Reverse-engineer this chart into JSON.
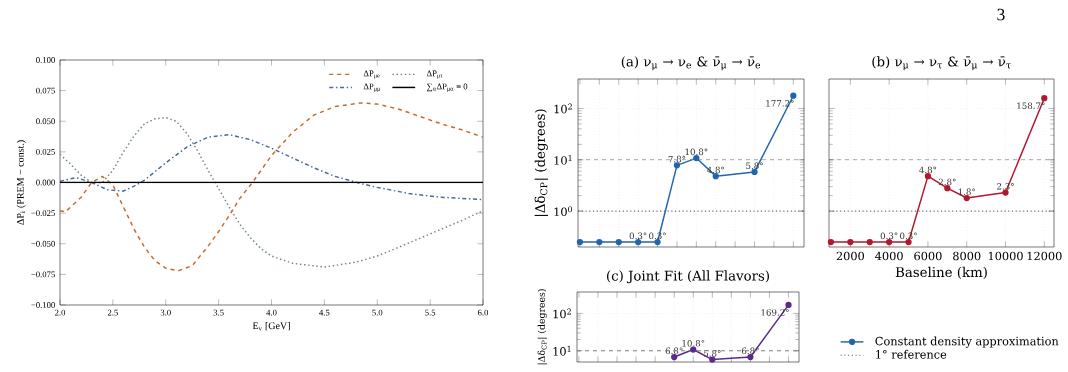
{
  "chart_data": [
    {
      "type": "line",
      "xlabel": "E$_{ν}$ [GeV]",
      "ylabel": "ΔP$_{i}$ (PREM − const.)",
      "annotations": [
        "3"
      ],
      "xlim": [
        2.0,
        6.0
      ],
      "ylim": [
        -0.1,
        0.1
      ],
      "xticks": [
        {
          "value": 2.0,
          "label": "2.0"
        },
        {
          "value": 2.5,
          "label": "2.5"
        },
        {
          "value": 3.0,
          "label": "3.0"
        },
        {
          "value": 3.5,
          "label": "3.5"
        },
        {
          "value": 4.0,
          "label": "4.0"
        },
        {
          "value": 4.5,
          "label": "4.5"
        },
        {
          "value": 5.0,
          "label": "5.0"
        },
        {
          "value": 5.5,
          "label": "5.5"
        },
        {
          "value": 6.0,
          "label": "6.0"
        }
      ],
      "yticks": [
        {
          "value": -0.1,
          "label": "−0.100"
        },
        {
          "value": -0.075,
          "label": "−0.075"
        },
        {
          "value": -0.05,
          "label": "−0.050"
        },
        {
          "value": -0.025,
          "label": "−0.025"
        },
        {
          "value": 0,
          "label": "0.000"
        },
        {
          "value": 0.025,
          "label": "0.025"
        },
        {
          "value": 0.05,
          "label": "0.050"
        },
        {
          "value": 0.075,
          "label": "0.075"
        },
        {
          "value": 0.1,
          "label": "0.100"
        }
      ],
      "legend": "top right",
      "series": [
        {
          "name": "ΔP$_{μe}$",
          "color": "#c8682a",
          "line_style": "dashed",
          "x": [
            2.0,
            2.05,
            2.2,
            2.3,
            2.4,
            2.5,
            2.6,
            2.7,
            2.8,
            2.9,
            3.0,
            3.12,
            3.25,
            3.4,
            3.5,
            3.6,
            3.7,
            3.82,
            4.0,
            4.2,
            4.4,
            4.6,
            4.85,
            5.0,
            5.2,
            5.4,
            5.6,
            5.8,
            6.0
          ],
          "values": [
            -0.023,
            -0.024,
            -0.012,
            0.0,
            0.005,
            -0.002,
            -0.02,
            -0.038,
            -0.053,
            -0.064,
            -0.07,
            -0.072,
            -0.068,
            -0.052,
            -0.04,
            -0.027,
            -0.013,
            0.0,
            0.022,
            0.041,
            0.055,
            0.062,
            0.065,
            0.064,
            0.06,
            0.054,
            0.048,
            0.043,
            0.037
          ]
        },
        {
          "name": "ΔP$_{μμ}$",
          "color": "#4a6a9a",
          "line_style": "dashdot",
          "x": [
            2.0,
            2.15,
            2.3,
            2.45,
            2.6,
            2.7,
            2.8,
            2.9,
            3.0,
            3.2,
            3.4,
            3.6,
            3.8,
            4.0,
            4.2,
            4.4,
            4.6,
            4.85,
            5.0,
            5.3,
            5.6,
            6.0
          ],
          "values": [
            0.001,
            0.004,
            0.0,
            -0.006,
            -0.007,
            -0.003,
            0.002,
            0.009,
            0.016,
            0.029,
            0.037,
            0.039,
            0.035,
            0.028,
            0.02,
            0.012,
            0.005,
            -0.001,
            -0.004,
            -0.009,
            -0.012,
            -0.014
          ]
        },
        {
          "name": "ΔP$_{μτ}$",
          "color": "#6a8a7a",
          "line_style": "dotted",
          "x": [
            2.0,
            2.1,
            2.2,
            2.3,
            2.4,
            2.5,
            2.6,
            2.7,
            2.8,
            2.9,
            3.0,
            3.1,
            3.2,
            3.3,
            3.4,
            3.5,
            3.6,
            3.7,
            3.8,
            3.9,
            4.0,
            4.2,
            4.5,
            4.8,
            5.0,
            5.2,
            5.5,
            5.8,
            6.0
          ],
          "values": [
            0.023,
            0.015,
            0.006,
            0.0,
            0.0,
            0.01,
            0.025,
            0.038,
            0.048,
            0.052,
            0.053,
            0.05,
            0.04,
            0.026,
            0.01,
            -0.005,
            -0.02,
            -0.034,
            -0.045,
            -0.054,
            -0.06,
            -0.066,
            -0.069,
            -0.065,
            -0.06,
            -0.053,
            -0.042,
            -0.031,
            -0.023
          ]
        },
        {
          "name": "∑$_{α}$ΔP$_{μα}$ ≡ 0",
          "color": "#000000",
          "line_style": "solid",
          "x": [
            2.0,
            6.0
          ],
          "values": [
            0,
            0
          ]
        }
      ]
    },
    {
      "type": "line",
      "title": "(a) ν$_{μ}$ → ν$_{e}$ & ν̄$_{μ}$ → ν̄$_{e}$",
      "ylabel": "|Δδ$_{CP}$| (degrees)",
      "categories": [
        null,
        null,
        null,
        null,
        null,
        null,
        null,
        null,
        null,
        null,
        null,
        null
      ],
      "ylim": [
        0.2,
        375
      ],
      "log": "y",
      "yticks": [
        {
          "value": 1,
          "label": "10$^{0}$"
        },
        {
          "value": 10,
          "label": "10$^{1}$"
        },
        {
          "value": 100,
          "label": "10$^{2}$"
        }
      ],
      "tick_labels": "y",
      "grid": true,
      "marker": "circle",
      "legend": "bottom right",
      "ref_lines": [
        {
          "axis": "y",
          "value": 10,
          "color": "#808080",
          "line_style": "dashed"
        },
        {
          "axis": "y",
          "value": 1,
          "color": "#606060",
          "line_style": "dotted",
          "label": "1° reference"
        }
      ],
      "series": [
        {
          "name": "Constant density approximation",
          "color": "#2166ac",
          "values": [
            0.25,
            0.25,
            0.25,
            0.25,
            0.25,
            7.8,
            10.8,
            4.8,
            null,
            5.8,
            null,
            177.2
          ],
          "value_labels": [
            null,
            null,
            null,
            "0.3°",
            "0.3°",
            "7.8°",
            "10.8°",
            "4.8°",
            null,
            "5.8°",
            null,
            "177.2°"
          ]
        }
      ]
    },
    {
      "type": "line",
      "title": "(b) ν$_{μ}$ → ν$_{τ}$ & ν̄$_{μ}$ → ν̄$_{τ}$",
      "xlabel": "Baseline (km)",
      "x": [
        1000,
        2000,
        3000,
        4000,
        5000,
        6000,
        7000,
        8000,
        10000,
        12000
      ],
      "xlim": [
        900,
        12500
      ],
      "xticks": [
        2000,
        4000,
        6000,
        8000,
        10000,
        12000
      ],
      "ylim": [
        0.2,
        375
      ],
      "log": "y",
      "yticks": [
        1,
        10,
        100
      ],
      "tick_labels": "x",
      "grid": true,
      "marker": "circle",
      "ref_lines": [
        {
          "axis": "y",
          "value": 10,
          "color": "#808080",
          "line_style": "dashed"
        },
        {
          "axis": "y",
          "value": 1,
          "color": "#606060",
          "line_style": "dotted"
        }
      ],
      "series": [
        {
          "color": "#b2182b",
          "values": [
            0.25,
            0.25,
            0.25,
            0.25,
            0.25,
            4.8,
            2.8,
            1.8,
            2.3,
            158.7
          ],
          "value_labels": [
            null,
            null,
            null,
            "0.3°",
            "0.3°",
            "4.8°",
            "2.8°",
            "1.8°",
            "2.3°",
            "158.7°"
          ]
        }
      ]
    },
    {
      "type": "line",
      "title": "(c) Joint Fit (All Flavors)",
      "ylabel": "|Δδ$_{CP}$| (degrees)",
      "categories": [
        null,
        null,
        null,
        null,
        null,
        null,
        null,
        null,
        null,
        null,
        null,
        null
      ],
      "ylim": [
        5,
        375
      ],
      "log": "y",
      "yticks": [
        {
          "value": 10,
          "label": "10$^{1}$"
        },
        {
          "value": 100,
          "label": "10$^{2}$"
        }
      ],
      "tick_labels": "y",
      "grid": true,
      "marker": "circle",
      "ref_lines": [
        {
          "axis": "y",
          "value": 10,
          "color": "#808080",
          "line_style": "dashed"
        }
      ],
      "series": [
        {
          "color": "#5b2a8c",
          "values": [
            null,
            null,
            null,
            null,
            null,
            6.8,
            10.8,
            5.8,
            null,
            6.8,
            null,
            169.2
          ],
          "value_labels": [
            null,
            null,
            null,
            null,
            null,
            "6.8°",
            "10.8°",
            "5.8°",
            null,
            "6.8°",
            null,
            "169.2°"
          ]
        }
      ]
    }
  ]
}
